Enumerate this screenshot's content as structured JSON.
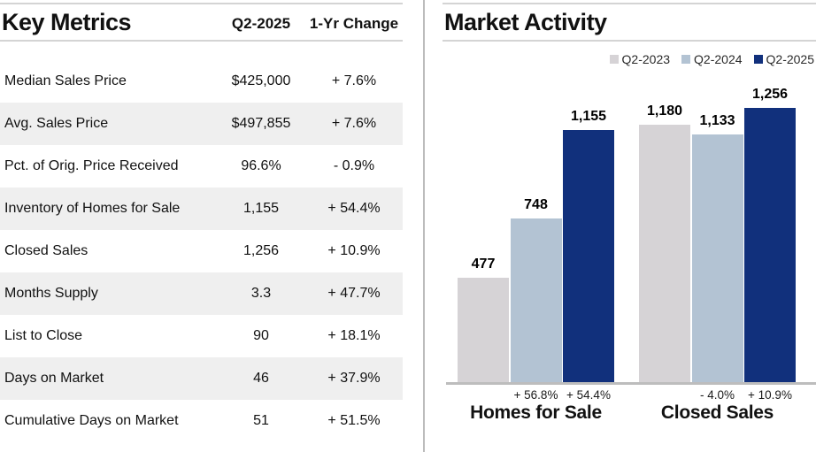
{
  "table": {
    "title": "Key Metrics",
    "columns": [
      "Q2-2025",
      "1-Yr Change"
    ],
    "rows": [
      {
        "label": "Median Sales Price",
        "value": "$425,000",
        "change": "+ 7.6%"
      },
      {
        "label": "Avg. Sales Price",
        "value": "$497,855",
        "change": "+ 7.6%"
      },
      {
        "label": "Pct. of Orig. Price Received",
        "value": "96.6%",
        "change": "- 0.9%"
      },
      {
        "label": "Inventory of Homes for Sale",
        "value": "1,155",
        "change": "+ 54.4%"
      },
      {
        "label": "Closed Sales",
        "value": "1,256",
        "change": "+ 10.9%"
      },
      {
        "label": "Months Supply",
        "value": "3.3",
        "change": "+ 47.7%"
      },
      {
        "label": "List to Close",
        "value": "90",
        "change": "+ 18.1%"
      },
      {
        "label": "Days on Market",
        "value": "46",
        "change": "+ 37.9%"
      },
      {
        "label": "Cumulative Days on Market",
        "value": "51",
        "change": "+ 51.5%"
      }
    ],
    "stripe_color": "#efefef"
  },
  "chart": {
    "title": "Market Activity"
  },
  "chart_data": {
    "type": "bar",
    "title": "Market Activity",
    "categories": [
      "Homes for Sale",
      "Closed Sales"
    ],
    "series": [
      {
        "name": "Q2-2023",
        "color": "#d6d3d6",
        "values": [
          477,
          1180
        ],
        "value_labels": [
          "477",
          "1,180"
        ]
      },
      {
        "name": "Q2-2024",
        "color": "#b3c3d3",
        "values": [
          748,
          1133
        ],
        "value_labels": [
          "748",
          "1,133"
        ],
        "change_labels": [
          "+ 56.8%",
          "- 4.0%"
        ]
      },
      {
        "name": "Q2-2025",
        "color": "#11307c",
        "values": [
          1155,
          1256
        ],
        "value_labels": [
          "1,155",
          "1,256"
        ],
        "change_labels": [
          "+ 54.4%",
          "+ 10.9%"
        ]
      }
    ],
    "xlabel": "",
    "ylabel": "",
    "ylim": [
      0,
      1366
    ],
    "grid": false,
    "legend_position": "top-right",
    "bar_labels_shown": true,
    "axis_line_color": "#bdbdbd"
  }
}
